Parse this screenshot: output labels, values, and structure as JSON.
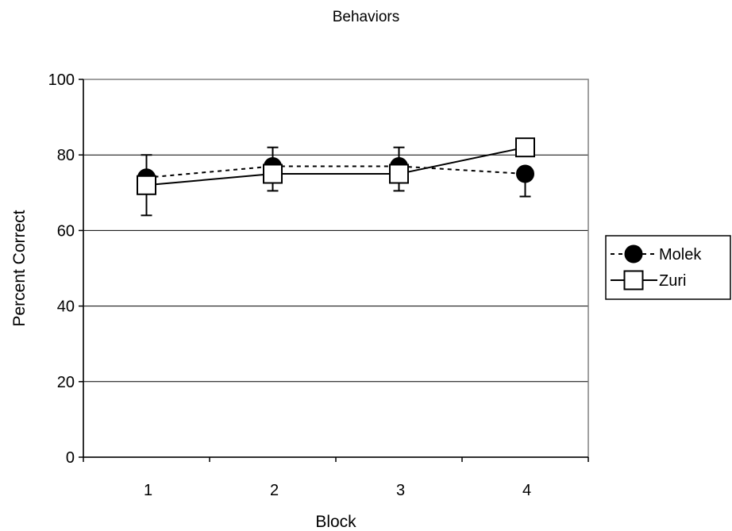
{
  "chart_data": {
    "type": "line",
    "title": "Behaviors",
    "xlabel": "Block",
    "ylabel": "Percent Correct",
    "categories": [
      "1",
      "2",
      "3",
      "4"
    ],
    "ylim": [
      0,
      100
    ],
    "yticks": [
      0,
      20,
      40,
      60,
      80,
      100
    ],
    "grid": true,
    "legend_position": "right",
    "series": [
      {
        "name": "Molek",
        "values": [
          74,
          77,
          77,
          75
        ],
        "error_low": [
          null,
          6.5,
          6.5,
          6
        ],
        "error_high": [
          null,
          5,
          5,
          null
        ],
        "marker": "filled-circle",
        "line_style": "dotted",
        "color": "#000000"
      },
      {
        "name": "Zuri",
        "values": [
          72,
          75,
          75,
          82
        ],
        "error_low": [
          8,
          null,
          null,
          null
        ],
        "error_high": [
          8,
          null,
          null,
          null
        ],
        "marker": "open-square",
        "line_style": "solid",
        "color": "#000000"
      }
    ]
  }
}
